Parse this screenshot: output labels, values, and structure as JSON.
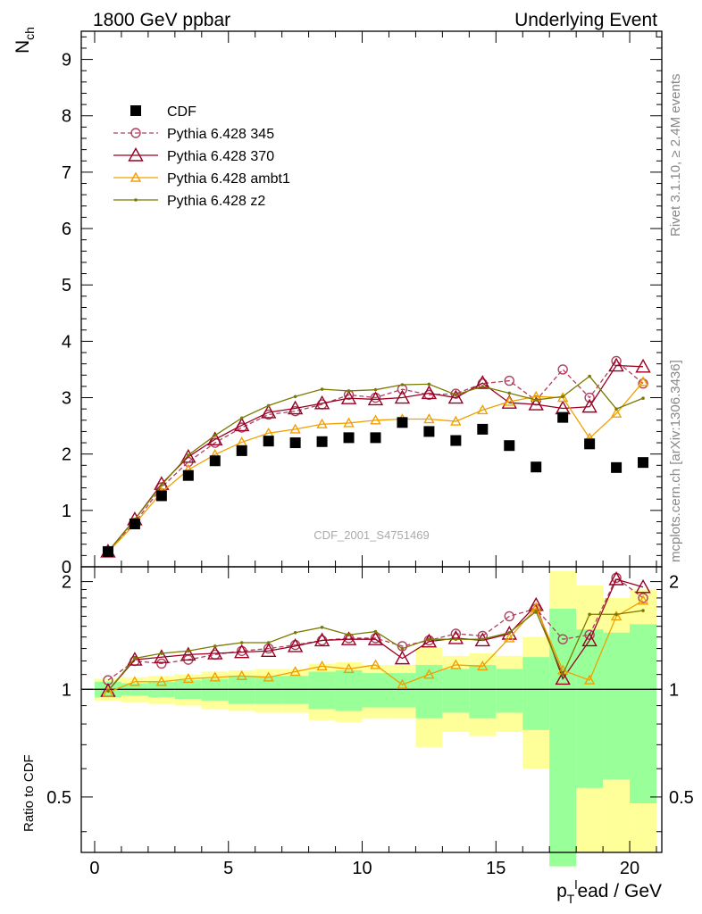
{
  "header": {
    "left_title": "1800 GeV ppbar",
    "right_title": "Underlying Event"
  },
  "side_labels": {
    "rivet": "Rivet 3.1.10, ≥ 2.4M events",
    "mcplots": "mcplots.cern.ch [arXiv:1306.3436]"
  },
  "watermark": "CDF_2001_S4751469",
  "chart_data": [
    {
      "type": "scatter",
      "ylabel": "N_ch",
      "xlim": [
        -0.5,
        21.2
      ],
      "ylim": [
        0,
        9.5
      ],
      "y_ticks": [
        0,
        1,
        2,
        3,
        4,
        5,
        6,
        7,
        8,
        9
      ],
      "grid": false,
      "legend_position": "top-left",
      "series": [
        {
          "name": "CDF",
          "color": "#000000",
          "marker": "square",
          "x": [
            0.5,
            1.5,
            2.5,
            3.5,
            4.5,
            5.5,
            6.5,
            7.5,
            8.5,
            9.5,
            10.5,
            11.5,
            12.5,
            13.5,
            14.5,
            15.5,
            16.5,
            17.5,
            18.5,
            19.5,
            20.5
          ],
          "y": [
            0.27,
            0.76,
            1.26,
            1.62,
            1.88,
            2.06,
            2.23,
            2.2,
            2.22,
            2.29,
            2.29,
            2.56,
            2.4,
            2.24,
            2.44,
            2.15,
            1.77,
            2.65,
            2.18,
            1.76,
            1.85
          ]
        },
        {
          "name": "Pythia 6.428 345",
          "color": "#b04060",
          "marker": "open-circle",
          "dashed": true,
          "x": [
            0.5,
            1.5,
            2.5,
            3.5,
            4.5,
            5.5,
            6.5,
            7.5,
            8.5,
            9.5,
            10.5,
            11.5,
            12.5,
            13.5,
            14.5,
            15.5,
            16.5,
            17.5,
            18.5,
            19.5,
            20.5
          ],
          "y": [
            0.28,
            0.78,
            1.41,
            1.86,
            2.2,
            2.47,
            2.7,
            2.76,
            2.88,
            3.05,
            3.0,
            3.15,
            3.05,
            3.07,
            3.25,
            3.3,
            2.95,
            3.5,
            3.0,
            3.65,
            3.25
          ]
        },
        {
          "name": "Pythia 6.428 370",
          "color": "#990022",
          "marker": "open-triangle",
          "x": [
            0.5,
            1.5,
            2.5,
            3.5,
            4.5,
            5.5,
            6.5,
            7.5,
            8.5,
            9.5,
            10.5,
            11.5,
            12.5,
            13.5,
            14.5,
            15.5,
            16.5,
            17.5,
            18.5,
            19.5,
            20.5
          ],
          "y": [
            0.27,
            0.84,
            1.47,
            1.95,
            2.26,
            2.51,
            2.74,
            2.81,
            2.9,
            2.99,
            2.97,
            3.0,
            3.08,
            3.0,
            3.26,
            2.91,
            2.88,
            2.81,
            2.84,
            3.57,
            3.55
          ]
        },
        {
          "name": "Pythia 6.428 ambt1",
          "color": "#f0a000",
          "marker": "open-triangle",
          "x": [
            0.5,
            1.5,
            2.5,
            3.5,
            4.5,
            5.5,
            6.5,
            7.5,
            8.5,
            9.5,
            10.5,
            11.5,
            12.5,
            13.5,
            14.5,
            15.5,
            16.5,
            17.5,
            18.5,
            19.5,
            20.5
          ],
          "y": [
            0.26,
            0.76,
            1.32,
            1.72,
            1.99,
            2.21,
            2.37,
            2.44,
            2.53,
            2.55,
            2.6,
            2.62,
            2.62,
            2.58,
            2.78,
            2.93,
            3.02,
            3.0,
            2.28,
            2.72,
            3.28
          ]
        },
        {
          "name": "Pythia 6.428 z2",
          "color": "#7a7a00",
          "marker": "dot",
          "x": [
            0.5,
            1.5,
            2.5,
            3.5,
            4.5,
            5.5,
            6.5,
            7.5,
            8.5,
            9.5,
            10.5,
            11.5,
            12.5,
            13.5,
            14.5,
            15.5,
            16.5,
            17.5,
            18.5,
            19.5,
            20.5
          ],
          "y": [
            0.27,
            0.84,
            1.45,
            1.98,
            2.33,
            2.64,
            2.86,
            3.02,
            3.15,
            3.12,
            3.14,
            3.23,
            3.24,
            3.05,
            3.2,
            3.08,
            2.96,
            3.02,
            3.38,
            2.8,
            2.99
          ]
        }
      ]
    },
    {
      "type": "scatter",
      "xlabel": "p_T^lead / GeV",
      "ylabel": "Ratio to CDF",
      "xlim": [
        -0.5,
        21.2
      ],
      "ylim": [
        0.35,
        2.2
      ],
      "x_ticks": [
        0,
        5,
        10,
        15,
        20
      ],
      "y_ticks": [
        0.5,
        1,
        2
      ],
      "bands": {
        "bin_edges": [
          0,
          1,
          2,
          3,
          4,
          5,
          6,
          7,
          8,
          9,
          10,
          11,
          12,
          13,
          14,
          15,
          16,
          17,
          18,
          19,
          20,
          21
        ],
        "green_lo": [
          0.95,
          0.96,
          0.95,
          0.94,
          0.93,
          0.91,
          0.91,
          0.91,
          0.88,
          0.87,
          0.89,
          0.89,
          0.83,
          0.86,
          0.83,
          0.86,
          0.77,
          0.32,
          0.53,
          0.56,
          0.48
        ],
        "green_hi": [
          1.05,
          1.04,
          1.05,
          1.06,
          1.07,
          1.09,
          1.09,
          1.09,
          1.12,
          1.13,
          1.11,
          1.11,
          1.17,
          1.14,
          1.17,
          1.14,
          1.23,
          1.68,
          1.47,
          1.44,
          1.52
        ],
        "yellow_lo": [
          0.93,
          0.92,
          0.91,
          0.9,
          0.88,
          0.87,
          0.86,
          0.86,
          0.82,
          0.81,
          0.83,
          0.83,
          0.69,
          0.76,
          0.74,
          0.76,
          0.6,
          0.32,
          0.35,
          0.35,
          0.35
        ],
        "yellow_hi": [
          1.07,
          1.08,
          1.09,
          1.1,
          1.12,
          1.13,
          1.14,
          1.14,
          1.18,
          1.19,
          1.17,
          1.17,
          1.31,
          1.24,
          1.26,
          1.24,
          1.4,
          2.14,
          1.95,
          1.8,
          1.9
        ]
      },
      "series": [
        {
          "name": "Pythia 6.428 345",
          "color": "#b04060",
          "marker": "open-circle",
          "dashed": true,
          "x": [
            0.5,
            1.5,
            2.5,
            3.5,
            4.5,
            5.5,
            6.5,
            7.5,
            8.5,
            9.5,
            10.5,
            11.5,
            12.5,
            13.5,
            14.5,
            15.5,
            16.5,
            17.5,
            18.5,
            19.5,
            20.5
          ],
          "y": [
            1.06,
            1.2,
            1.18,
            1.21,
            1.25,
            1.28,
            1.3,
            1.33,
            1.37,
            1.39,
            1.39,
            1.32,
            1.37,
            1.43,
            1.41,
            1.6,
            1.68,
            1.38,
            1.42,
            2.05,
            1.8
          ]
        },
        {
          "name": "Pythia 6.428 370",
          "color": "#990022",
          "marker": "open-triangle",
          "x": [
            0.5,
            1.5,
            2.5,
            3.5,
            4.5,
            5.5,
            6.5,
            7.5,
            8.5,
            9.5,
            10.5,
            11.5,
            12.5,
            13.5,
            14.5,
            15.5,
            16.5,
            17.5,
            18.5,
            19.5,
            20.5
          ],
          "y": [
            0.99,
            1.21,
            1.23,
            1.25,
            1.26,
            1.27,
            1.28,
            1.32,
            1.37,
            1.38,
            1.38,
            1.22,
            1.36,
            1.39,
            1.37,
            1.43,
            1.72,
            1.07,
            1.37,
            2.03,
            1.93
          ]
        },
        {
          "name": "Pythia 6.428 ambt1",
          "color": "#f0a000",
          "marker": "open-triangle",
          "x": [
            0.5,
            1.5,
            2.5,
            3.5,
            4.5,
            5.5,
            6.5,
            7.5,
            8.5,
            9.5,
            10.5,
            11.5,
            12.5,
            13.5,
            14.5,
            15.5,
            16.5,
            17.5,
            18.5,
            19.5,
            20.5
          ],
          "y": [
            0.98,
            1.05,
            1.05,
            1.07,
            1.08,
            1.09,
            1.08,
            1.12,
            1.16,
            1.14,
            1.17,
            1.03,
            1.1,
            1.17,
            1.16,
            1.39,
            1.69,
            1.13,
            1.06,
            1.6,
            1.77
          ]
        },
        {
          "name": "Pythia 6.428 z2",
          "color": "#7a7a00",
          "marker": "dot",
          "x": [
            0.5,
            1.5,
            2.5,
            3.5,
            4.5,
            5.5,
            6.5,
            7.5,
            8.5,
            9.5,
            10.5,
            11.5,
            12.5,
            13.5,
            14.5,
            15.5,
            16.5,
            17.5,
            18.5,
            19.5,
            20.5
          ],
          "y": [
            0.99,
            1.22,
            1.26,
            1.28,
            1.32,
            1.35,
            1.35,
            1.44,
            1.49,
            1.42,
            1.45,
            1.3,
            1.38,
            1.38,
            1.38,
            1.44,
            1.65,
            1.1,
            1.62,
            1.62,
            1.66
          ]
        }
      ]
    }
  ]
}
